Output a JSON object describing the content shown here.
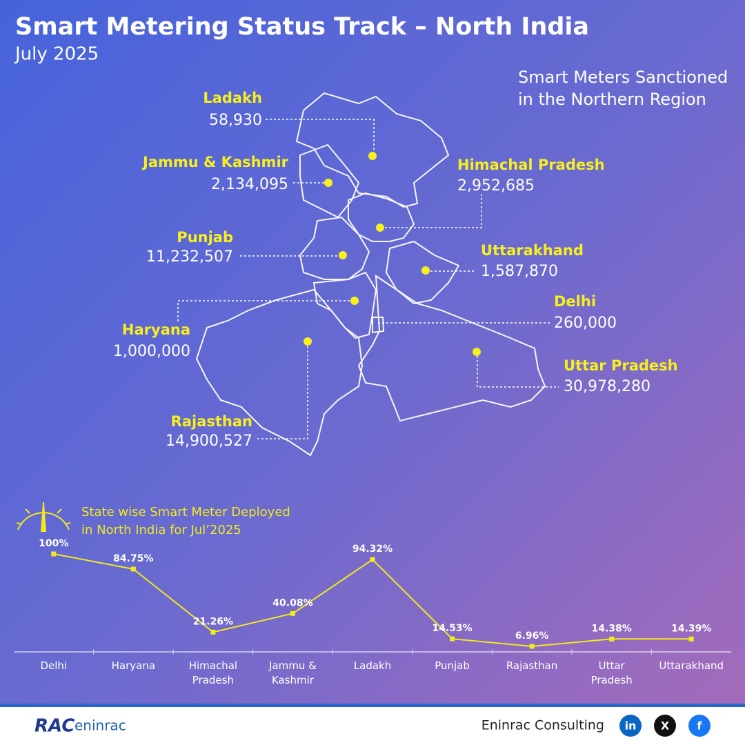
{
  "header": {
    "title": "Smart Metering Status Track – North India",
    "subtitle": "July 2025"
  },
  "map": {
    "title": "Smart Meters Sanctioned\nin the Northern Region",
    "states": [
      {
        "name": "Ladakh",
        "count": "58,930"
      },
      {
        "name": "Jammu & Kashmir",
        "count": "2,134,095"
      },
      {
        "name": "Himachal Pradesh",
        "count": "2,952,685"
      },
      {
        "name": "Punjab",
        "count": "11,232,507"
      },
      {
        "name": "Uttarakhand",
        "count": "1,587,870"
      },
      {
        "name": "Haryana",
        "count": "1,000,000"
      },
      {
        "name": "Delhi",
        "count": "260,000"
      },
      {
        "name": "Uttar Pradesh",
        "count": "30,978,280"
      },
      {
        "name": "Rajasthan",
        "count": "14,900,527"
      }
    ]
  },
  "chart_data": {
    "type": "line",
    "title": "State wise Smart Meter Deployed\nin North India for Jul’2025",
    "categories": [
      "Delhi",
      "Haryana",
      "Himachal\nPradesh",
      "Jammu &\nKashmir",
      "Ladakh",
      "Punjab",
      "Rajasthan",
      "Uttar\nPradesh",
      "Uttarakhand"
    ],
    "values": [
      100,
      84.75,
      21.26,
      40.08,
      94.32,
      14.53,
      6.96,
      14.38,
      14.39
    ],
    "value_labels": [
      "100%",
      "84.75%",
      "21.26%",
      "40.08%",
      "94.32%",
      "14.53%",
      "6.96%",
      "14.38%",
      "14.39%"
    ],
    "color": "#f2ea1d",
    "ylim": [
      0,
      100
    ]
  },
  "footer": {
    "logo_main": "RAC",
    "logo_sub": "eninrac",
    "company": "Eninrac Consulting",
    "social": [
      "in",
      "X",
      "f"
    ]
  }
}
